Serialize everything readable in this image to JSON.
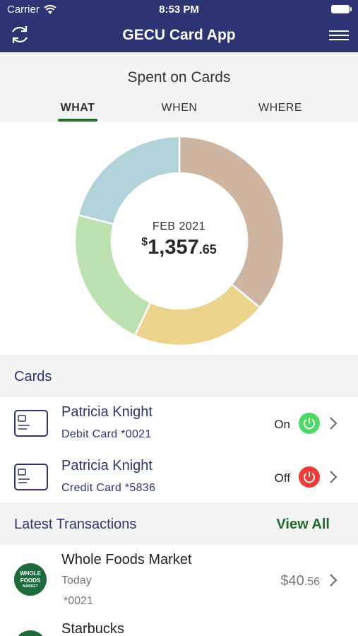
{
  "status_bar": {
    "carrier": "Carrier",
    "time": "8:53 PM"
  },
  "nav": {
    "title": "GECU Card App",
    "icons": [
      "refresh-icon",
      "hamburger-menu-icon"
    ]
  },
  "summary": {
    "heading": "Spent on Cards",
    "tabs": [
      {
        "label": "WHAT",
        "active": true
      },
      {
        "label": "WHEN",
        "active": false
      },
      {
        "label": "WHERE",
        "active": false
      }
    ],
    "period": "FEB 2021",
    "currency": "$",
    "amount_whole": "1,357",
    "amount_cents": ".65"
  },
  "chart_data": {
    "type": "pie",
    "donut": true,
    "slices": [
      {
        "color": "#cdb5a2",
        "value": 36
      },
      {
        "color": "#ecd48d",
        "value": 21
      },
      {
        "color": "#bde1b0",
        "value": 22
      },
      {
        "color": "#b0d2d8",
        "value": 21
      }
    ]
  },
  "cards_section": {
    "label": "Cards"
  },
  "cards": [
    {
      "name": "Patricia Knight",
      "sub": "Debit Card *0021",
      "state": "On",
      "on": true,
      "color": "#4cd964"
    },
    {
      "name": "Patricia Knight",
      "sub": "Credit Card *5836",
      "state": "Off",
      "on": false,
      "color": "#ee3b37"
    }
  ],
  "transactions_section": {
    "label": "Latest Transactions",
    "view_all": "View All"
  },
  "transactions": [
    {
      "merchant": "Whole Foods Market",
      "date": "Today",
      "card": "*0021",
      "amount_whole": "$40",
      "amount_cents": ".56",
      "logo": [
        "WHOLE",
        "FOODS",
        "MARKET"
      ]
    },
    {
      "merchant": "Starbucks"
    }
  ]
}
